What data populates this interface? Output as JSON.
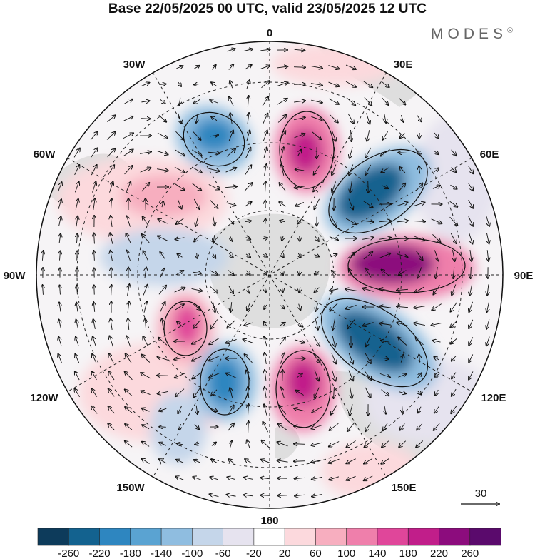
{
  "title": "Base 22/05/2025 00 UTC, valid 23/05/2025 12 UTC",
  "brand": "MODES",
  "brand_mark": "®",
  "longitude_labels": {
    "top": "0",
    "n30e": "30E",
    "n60e": "60E",
    "e90": "90E",
    "s120e": "120E",
    "s150e": "150E",
    "bottom": "180",
    "s150w": "150W",
    "s120w": "120W",
    "w90": "90W",
    "n60w": "60W",
    "n30w": "30W"
  },
  "vector_reference": {
    "label": "30",
    "units_value": 30
  },
  "colorbar": {
    "ticks": [
      "-260",
      "-220",
      "-180",
      "-140",
      "-100",
      "-60",
      "-20",
      "20",
      "60",
      "100",
      "140",
      "180",
      "220",
      "260"
    ],
    "colors": [
      "#0d3b5b",
      "#13628f",
      "#2e86c0",
      "#5aa3d2",
      "#8fbde0",
      "#c5d6ea",
      "#e6e3ef",
      "#ffffff",
      "#fcd9dd",
      "#f7aebf",
      "#ef7fab",
      "#e0469a",
      "#c11e8a",
      "#8c0c7d",
      "#5a0a6c"
    ]
  },
  "colors": {
    "land": "#d9d9d9",
    "neg_strong": "#1e6a99",
    "pos_strong": "#c11e8a"
  }
}
